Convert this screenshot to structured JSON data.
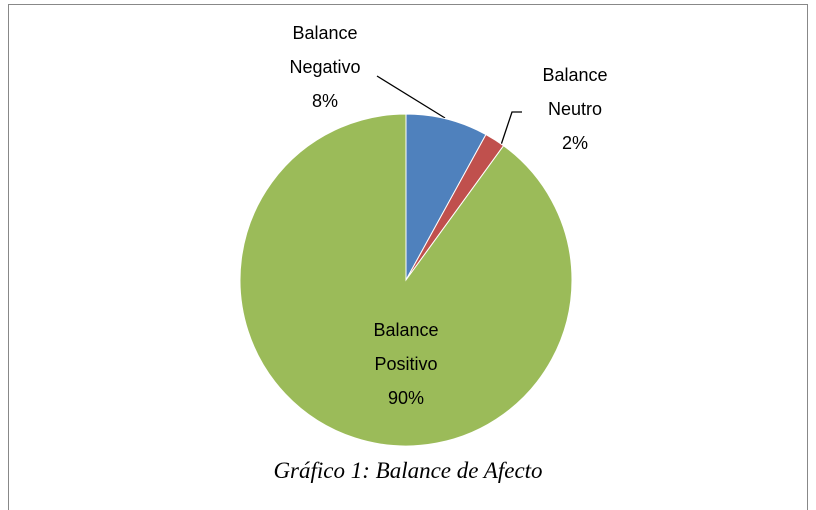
{
  "chart_data": {
    "type": "pie",
    "categories": [
      "Balance Negativo",
      "Balance Neutro",
      "Balance Positivo"
    ],
    "values": [
      8,
      2,
      90
    ],
    "value_labels": [
      "8%",
      "2%",
      "90%"
    ],
    "colors": [
      "#4f81bd",
      "#c0504d",
      "#9bbb59"
    ],
    "caption": "Gráfico 1: Balance de Afecto"
  }
}
